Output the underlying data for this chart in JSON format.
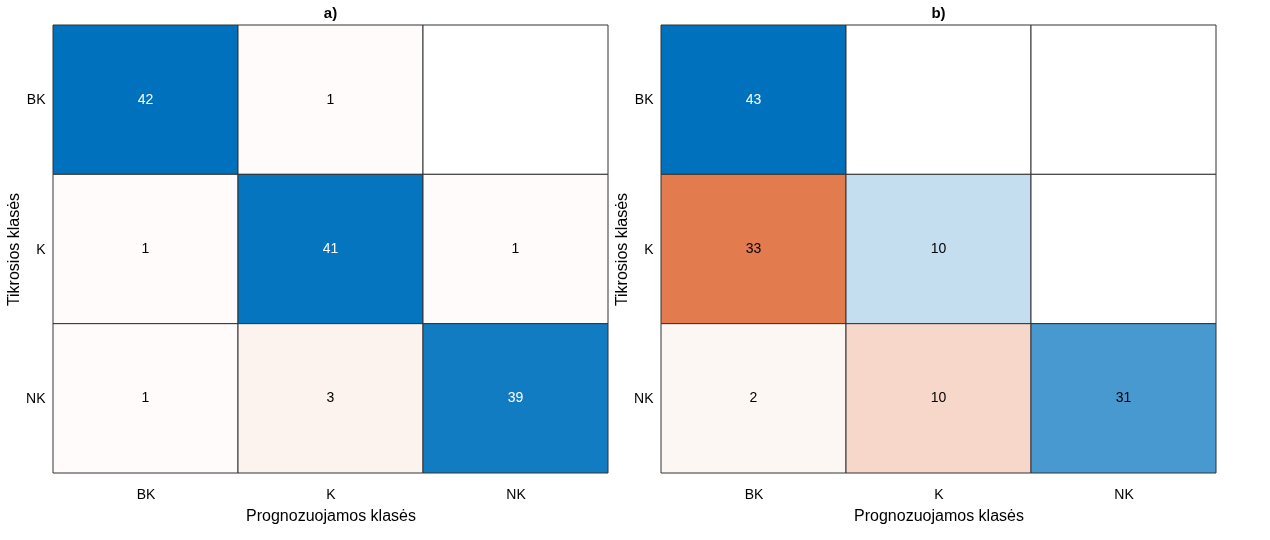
{
  "chart_data": [
    {
      "type": "heatmap",
      "data_labels": true,
      "title": "a)",
      "xlabel": "Prognozuojamos klasės",
      "ylabel": "Tikrosios klasės",
      "categories": [
        "BK",
        "K",
        "NK"
      ],
      "y_categories": [
        "BK",
        "K",
        "NK"
      ],
      "colors": [
        "#0072bd",
        "#d95319"
      ],
      "cells": [
        [
          42,
          1,
          null
        ],
        [
          1,
          41,
          1
        ],
        [
          1,
          3,
          39
        ]
      ]
    },
    {
      "type": "heatmap",
      "data_labels": true,
      "title": "b)",
      "xlabel": "Prognozuojamos klasės",
      "ylabel": "Tikrosios klasės",
      "categories": [
        "BK",
        "K",
        "NK"
      ],
      "y_categories": [
        "BK",
        "K",
        "NK"
      ],
      "colors": [
        "#0072bd",
        "#d95319"
      ],
      "cells": [
        [
          43,
          null,
          null
        ],
        [
          33,
          10,
          null
        ],
        [
          2,
          10,
          31
        ]
      ]
    }
  ]
}
